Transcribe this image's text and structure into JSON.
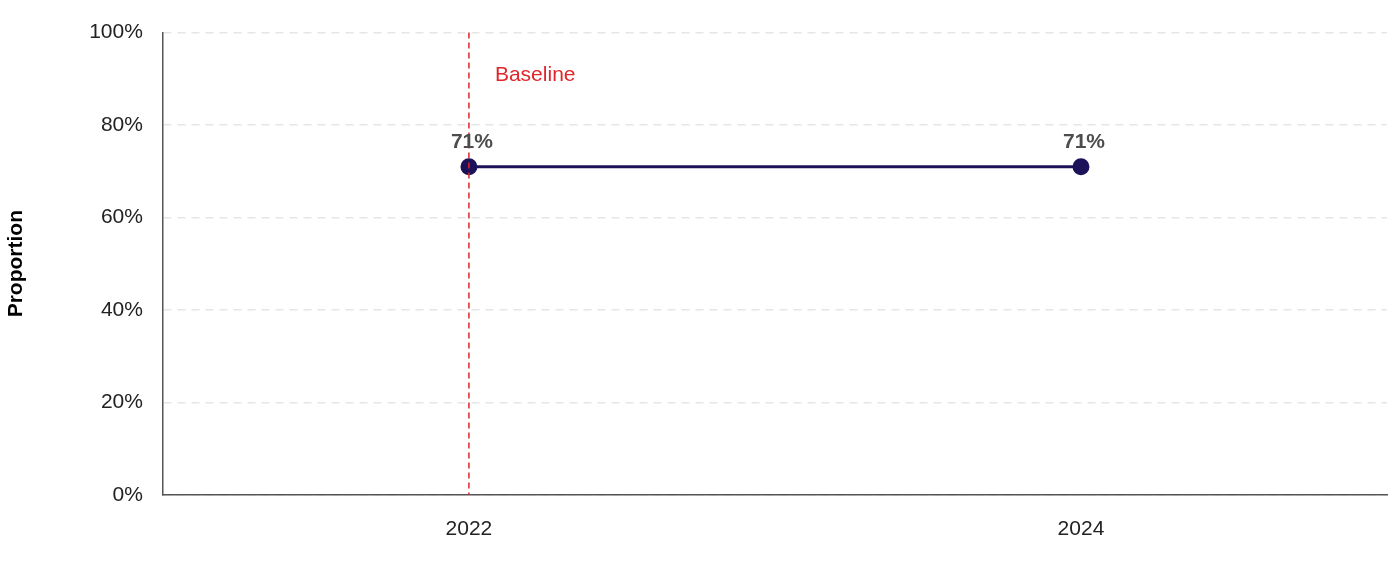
{
  "chart_data": {
    "type": "line",
    "ylabel": "Proportion",
    "categories": [
      "2022",
      "2024"
    ],
    "series": [
      {
        "color": "#1c1259",
        "values": [
          71,
          71
        ]
      }
    ],
    "ylim": [
      0,
      100
    ],
    "yticks": [
      {
        "value": 0,
        "label": "0%"
      },
      {
        "value": 20,
        "label": "20%"
      },
      {
        "value": 40,
        "label": "40%"
      },
      {
        "value": 60,
        "label": "60%"
      },
      {
        "value": 80,
        "label": "80%"
      },
      {
        "value": 100,
        "label": "100%"
      }
    ],
    "grid": "y",
    "legend": false,
    "marker": "circle",
    "line_style": "solid",
    "value_labels": [
      "71%",
      "71%"
    ],
    "ref_lines": [
      {
        "axis": "x",
        "value": "2022",
        "label": "Baseline",
        "color": "#e0262b",
        "line_style": "dashed"
      }
    ]
  }
}
